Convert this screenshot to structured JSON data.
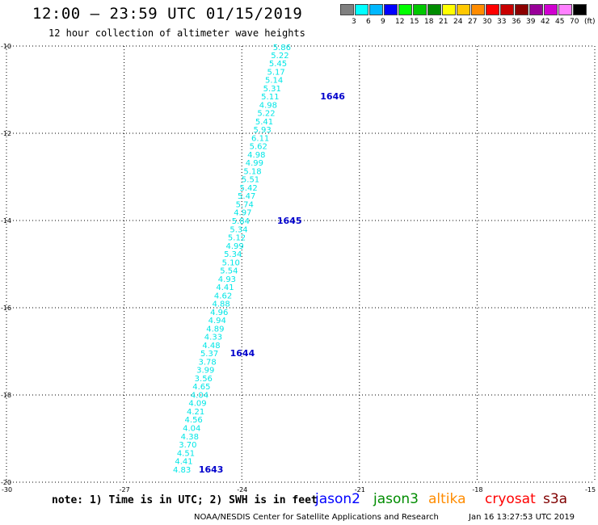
{
  "title": "12:00 — 23:59 UTC 01/15/2019",
  "subtitle": "12 hour collection of altimeter wave heights",
  "colorbar": {
    "colors": [
      "#808080",
      "#00ffff",
      "#00b8ff",
      "#0000ff",
      "#00ff00",
      "#00c800",
      "#008c00",
      "#ffff00",
      "#ffc800",
      "#ff8c00",
      "#ff0000",
      "#c80000",
      "#8c0000",
      "#990099",
      "#d000d0",
      "#ff80ff",
      "#000000"
    ],
    "labels": [
      "3",
      "6",
      "9",
      "12",
      "15",
      "18",
      "21",
      "24",
      "27",
      "30",
      "33",
      "36",
      "39",
      "42",
      "45",
      "70",
      "(ft)"
    ]
  },
  "map": {
    "lat_labels": [
      "-10",
      "-12",
      "-14",
      "-16",
      "-18",
      "-20"
    ],
    "lon_labels": [
      "-30",
      "-27",
      "-24",
      "-21",
      "-18",
      "-15"
    ],
    "lat_values": [
      -10,
      -12,
      -14,
      -16,
      -18,
      -20
    ],
    "lon_values": [
      -30,
      -27,
      -24,
      -21,
      -18,
      -15
    ],
    "track_color": "#00e6e6",
    "time_color": "#0000cc",
    "track": [
      {
        "lon": -23.0,
        "lat": -10.02,
        "v": "5.86"
      },
      {
        "lon": -23.05,
        "lat": -10.2,
        "v": "5.22"
      },
      {
        "lon": -23.1,
        "lat": -10.39,
        "v": "5.45"
      },
      {
        "lon": -23.15,
        "lat": -10.58,
        "v": "5.17"
      },
      {
        "lon": -23.2,
        "lat": -10.77,
        "v": "5.14"
      },
      {
        "lon": -23.25,
        "lat": -10.96,
        "v": "5.31"
      },
      {
        "lon": -23.3,
        "lat": -11.15,
        "v": "5.11"
      },
      {
        "lon": -23.35,
        "lat": -11.34,
        "v": "4.98"
      },
      {
        "lon": -23.4,
        "lat": -11.53,
        "v": "5.22"
      },
      {
        "lon": -23.45,
        "lat": -11.72,
        "v": "5.41"
      },
      {
        "lon": -23.5,
        "lat": -11.91,
        "v": "5.93"
      },
      {
        "lon": -23.55,
        "lat": -12.1,
        "v": "6.11"
      },
      {
        "lon": -23.6,
        "lat": -12.29,
        "v": "5.62"
      },
      {
        "lon": -23.65,
        "lat": -12.48,
        "v": "4.98"
      },
      {
        "lon": -23.7,
        "lat": -12.67,
        "v": "4.99"
      },
      {
        "lon": -23.75,
        "lat": -12.86,
        "v": "5.18"
      },
      {
        "lon": -23.8,
        "lat": -13.05,
        "v": "5.51"
      },
      {
        "lon": -23.85,
        "lat": -13.24,
        "v": "5.42"
      },
      {
        "lon": -23.9,
        "lat": -13.43,
        "v": "5.47"
      },
      {
        "lon": -23.95,
        "lat": -13.62,
        "v": "5.74"
      },
      {
        "lon": -24.0,
        "lat": -13.81,
        "v": "4.97"
      },
      {
        "lon": -24.05,
        "lat": -14.0,
        "v": "5.84"
      },
      {
        "lon": -24.1,
        "lat": -14.19,
        "v": "5.34"
      },
      {
        "lon": -24.15,
        "lat": -14.38,
        "v": "5.12"
      },
      {
        "lon": -24.2,
        "lat": -14.57,
        "v": "4.99"
      },
      {
        "lon": -24.25,
        "lat": -14.76,
        "v": "5.34"
      },
      {
        "lon": -24.3,
        "lat": -14.95,
        "v": "5.10"
      },
      {
        "lon": -24.35,
        "lat": -15.14,
        "v": "5.54"
      },
      {
        "lon": -24.4,
        "lat": -15.33,
        "v": "4.93"
      },
      {
        "lon": -24.45,
        "lat": -15.52,
        "v": "4.41"
      },
      {
        "lon": -24.5,
        "lat": -15.71,
        "v": "4.62"
      },
      {
        "lon": -24.55,
        "lat": -15.9,
        "v": "4.88"
      },
      {
        "lon": -24.6,
        "lat": -16.09,
        "v": "4.96"
      },
      {
        "lon": -24.65,
        "lat": -16.28,
        "v": "4.94"
      },
      {
        "lon": -24.7,
        "lat": -16.47,
        "v": "4.89"
      },
      {
        "lon": -24.75,
        "lat": -16.66,
        "v": "4.33"
      },
      {
        "lon": -24.8,
        "lat": -16.85,
        "v": "4.48"
      },
      {
        "lon": -24.85,
        "lat": -17.04,
        "v": "5.37"
      },
      {
        "lon": -24.9,
        "lat": -17.23,
        "v": "3.78"
      },
      {
        "lon": -24.95,
        "lat": -17.42,
        "v": "3.99"
      },
      {
        "lon": -25.0,
        "lat": -17.61,
        "v": "3.56"
      },
      {
        "lon": -25.05,
        "lat": -17.8,
        "v": "4.65"
      },
      {
        "lon": -25.1,
        "lat": -17.99,
        "v": "4.04"
      },
      {
        "lon": -25.15,
        "lat": -18.18,
        "v": "4.09"
      },
      {
        "lon": -25.2,
        "lat": -18.37,
        "v": "4.21"
      },
      {
        "lon": -25.25,
        "lat": -18.56,
        "v": "4.56"
      },
      {
        "lon": -25.3,
        "lat": -18.75,
        "v": "4.04"
      },
      {
        "lon": -25.35,
        "lat": -18.94,
        "v": "4.38"
      },
      {
        "lon": -25.4,
        "lat": -19.13,
        "v": "3.70"
      },
      {
        "lon": -25.45,
        "lat": -19.32,
        "v": "4.51"
      },
      {
        "lon": -25.5,
        "lat": -19.51,
        "v": "4.41"
      },
      {
        "lon": -25.55,
        "lat": -19.7,
        "v": "4.83"
      }
    ],
    "times": [
      {
        "lon": -22.0,
        "lat": -11.15,
        "t": "1646"
      },
      {
        "lon": -23.1,
        "lat": -14.0,
        "t": "1645"
      },
      {
        "lon": -24.3,
        "lat": -17.04,
        "t": "1644"
      },
      {
        "lon": -25.1,
        "lat": -19.7,
        "t": "1643"
      }
    ]
  },
  "note": "note: 1) Time is in UTC; 2) SWH is in feet",
  "satellites": [
    {
      "name": "jason2",
      "color": "#0000ff"
    },
    {
      "name": "jason3",
      "color": "#008c00"
    },
    {
      "name": "altika",
      "color": "#ff8c00"
    },
    {
      "name": "cryosat",
      "color": "#ff0000"
    },
    {
      "name": "s3a",
      "color": "#800000"
    }
  ],
  "credit": "NOAA/NESDIS Center for Satellite Applications and Research",
  "stamp": "Jan 16 13:27:53 UTC 2019"
}
